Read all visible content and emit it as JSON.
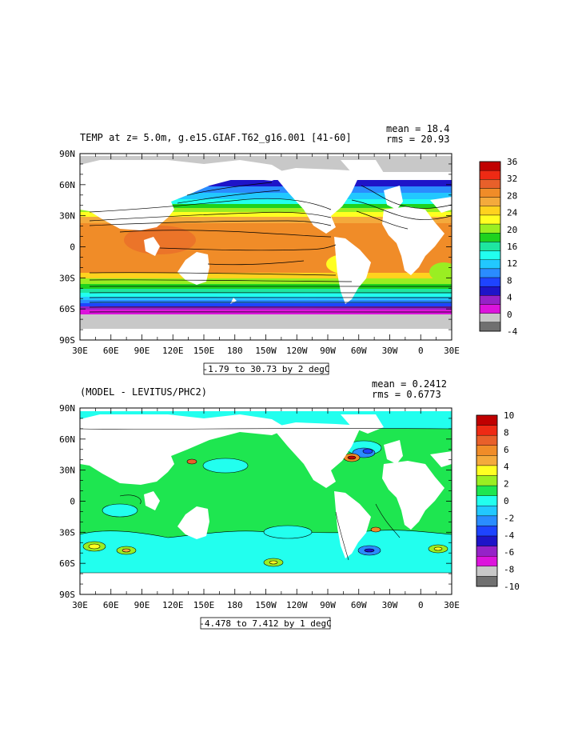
{
  "chart_data": [
    {
      "type": "heatmap",
      "title": "TEMP at z=   5.0m, g.e15.GIAF.T62_g16.001 [41-60]",
      "stats": {
        "mean": "mean = 18.4",
        "rms": "rms = 20.93"
      },
      "range_label": "-1.79 to 30.73 by 2 degC",
      "x_ticks": [
        "30E",
        "60E",
        "90E",
        "120E",
        "150E",
        "180",
        "150W",
        "120W",
        "90W",
        "60W",
        "30W",
        "0",
        "30E"
      ],
      "y_ticks": [
        "90N",
        "60N",
        "30N",
        "0",
        "30S",
        "60S",
        "90S"
      ],
      "colorbar": {
        "labels": [
          "36",
          "32",
          "28",
          "24",
          "20",
          "16",
          "12",
          "8",
          "4",
          "0",
          "-4"
        ],
        "colors": [
          "#c00000",
          "#ee2a14",
          "#e8602a",
          "#f08c28",
          "#f4aa3c",
          "#ffd21e",
          "#ffff22",
          "#9aee22",
          "#1ed21e",
          "#1ee6a0",
          "#22ffee",
          "#22c8ff",
          "#2a8cff",
          "#1e44ff",
          "#1e14c8",
          "#9622c8",
          "#dc14dc",
          "#c8c8c8",
          "#707070"
        ]
      }
    },
    {
      "type": "heatmap",
      "title": "(MODEL - LEVITUS/PHC2)",
      "stats": {
        "mean": "mean = 0.2412",
        "rms": "rms = 0.6773"
      },
      "range_label": "-4.478 to 7.412 by 1 degC",
      "x_ticks": [
        "30E",
        "60E",
        "90E",
        "120E",
        "150E",
        "180",
        "150W",
        "120W",
        "90W",
        "60W",
        "30W",
        "0",
        "30E"
      ],
      "y_ticks": [
        "90N",
        "60N",
        "30N",
        "0",
        "30S",
        "60S",
        "90S"
      ],
      "colorbar": {
        "labels": [
          "10",
          "8",
          "6",
          "4",
          "2",
          "0",
          "-2",
          "-4",
          "-6",
          "-8",
          "-10"
        ],
        "colors": [
          "#c00000",
          "#ee2a14",
          "#e8602a",
          "#f08c28",
          "#f4aa3c",
          "#ffff22",
          "#9aee22",
          "#1ee650",
          "#22ffee",
          "#22c8ff",
          "#2a8cff",
          "#1e44ff",
          "#1e14c8",
          "#9622c8",
          "#dc14dc",
          "#c8c8c8",
          "#707070"
        ]
      }
    }
  ]
}
